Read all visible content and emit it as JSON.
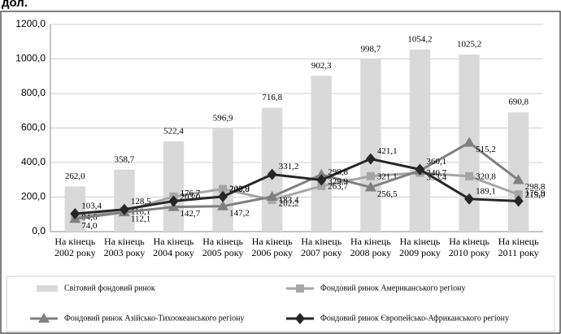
{
  "chart_data": {
    "type": "bar-line",
    "title": "дол.",
    "categories": [
      [
        "На кінець",
        "2002 року"
      ],
      [
        "На кінець",
        "2003 року"
      ],
      [
        "На кінець",
        "2004 року"
      ],
      [
        "На кінець",
        "2005 року"
      ],
      [
        "На кінець",
        "2006 року"
      ],
      [
        "На кінець",
        "2007 року"
      ],
      [
        "На кінець",
        "2008 року"
      ],
      [
        "На кінець",
        "2009 року"
      ],
      [
        "На кінець",
        "2010 року"
      ],
      [
        "На кінець",
        "2011 року"
      ]
    ],
    "series": [
      {
        "name": "Світовий фондовий ринок",
        "type": "bar",
        "color": "#d9d9d9",
        "values": [
          262.0,
          358.7,
          522.4,
          596.9,
          716.8,
          902.3,
          998.7,
          1054.2,
          1025.2,
          690.8
        ],
        "value_labels": [
          "262,0",
          "358,7",
          "522,4",
          "596,9",
          "716,8",
          "902,3",
          "998,7",
          "1054,2",
          "1025,2",
          "690,8"
        ]
      },
      {
        "name": "Фондовий ринок Американського регіону",
        "type": "line",
        "marker": "square",
        "color": "#a6a6a6",
        "values": [
          84.6,
          118.1,
          203.0,
          246.8,
          183.4,
          263.7,
          321.1,
          340.7,
          320.8,
          215.0
        ],
        "value_labels": [
          "84,6",
          "118,1",
          "203,0",
          "246,8",
          "183,4",
          "263,7",
          "321,1",
          "340,7",
          "320,8",
          "215,0"
        ]
      },
      {
        "name": "Фондовий ринок Азійсько-Тихоокеанського регіону",
        "type": "line",
        "marker": "triangle",
        "color": "#808080",
        "values": [
          74.0,
          112.1,
          142.7,
          147.2,
          202.2,
          329.9,
          256.5,
          353.4,
          515.2,
          298.8
        ],
        "value_labels": [
          "74,0",
          "112,1",
          "142,7",
          "147,2",
          "202,2",
          "329,9",
          "256,5",
          "353,4",
          "515,2",
          "298,8"
        ]
      },
      {
        "name": "Фондовий ринок Європейсько-Африканського регіону",
        "type": "line",
        "marker": "diamond",
        "color": "#262626",
        "values": [
          103.4,
          128.5,
          176.7,
          202.9,
          331.2,
          298.8,
          421.1,
          360.1,
          189.1,
          176.9
        ],
        "value_labels": [
          "103,4",
          "128,5",
          "176,7",
          "202,9",
          "331,2",
          "298,8",
          "421,1",
          "360,1",
          "189,1",
          "176,9"
        ]
      }
    ],
    "ylim": [
      0,
      1200
    ],
    "yticks": [
      {
        "value": 0,
        "label": "0,0"
      },
      {
        "value": 200,
        "label": "200,0"
      },
      {
        "value": 400,
        "label": "400,0"
      },
      {
        "value": 600,
        "label": "600,0"
      },
      {
        "value": 800,
        "label": "800,0"
      },
      {
        "value": 1000,
        "label": "1000,0"
      },
      {
        "value": 1200,
        "label": "1200,0"
      }
    ],
    "grid": true,
    "legend": "bottom"
  }
}
